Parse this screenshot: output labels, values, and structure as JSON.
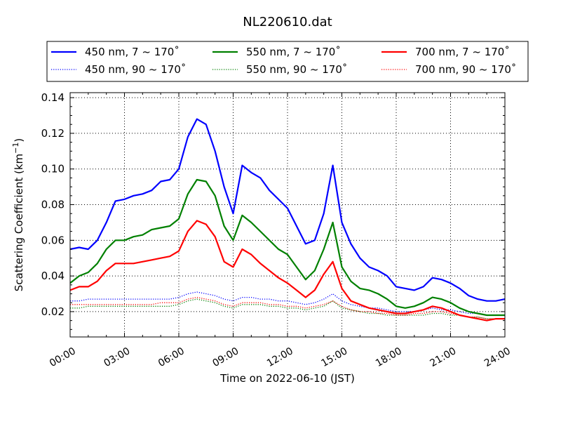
{
  "chart_data": {
    "type": "line",
    "title": "NL220610.dat",
    "xlabel": "Time on 2022-06-10 (JST)",
    "ylabel": "Scattering Coefficient (km",
    "ylabel_sup": "−1",
    "ylabel_end": ")",
    "xlim": [
      0,
      24
    ],
    "ylim": [
      0.0058,
      0.1428
    ],
    "x_ticks": [
      0,
      3,
      6,
      9,
      12,
      15,
      18,
      21,
      24
    ],
    "x_tick_labels": [
      "00:00",
      "03:00",
      "06:00",
      "09:00",
      "12:00",
      "15:00",
      "18:00",
      "21:00",
      "24:00"
    ],
    "y_ticks": [
      0.02,
      0.04,
      0.06,
      0.08,
      0.1,
      0.12,
      0.14
    ],
    "y_tick_labels": [
      "0.02",
      "0.04",
      "0.06",
      "0.08",
      "0.10",
      "0.12",
      "0.14"
    ],
    "grid": true,
    "legend_placement": "top, outside plot",
    "x_hours_step": 0.5,
    "series": [
      {
        "name": "450 nm, 7 ~ 170˚",
        "color": "#0000ff",
        "style": "solid",
        "values": [
          0.055,
          0.056,
          0.055,
          0.06,
          0.07,
          0.082,
          0.083,
          0.085,
          0.086,
          0.088,
          0.093,
          0.094,
          0.1,
          0.118,
          0.128,
          0.125,
          0.11,
          0.09,
          0.075,
          0.102,
          0.098,
          0.095,
          0.088,
          0.083,
          0.078,
          0.068,
          0.058,
          0.06,
          0.075,
          0.102,
          0.07,
          0.058,
          0.05,
          0.045,
          0.043,
          0.04,
          0.034,
          0.033,
          0.032,
          0.034,
          0.039,
          0.038,
          0.036,
          0.033,
          0.029,
          0.027,
          0.026,
          0.026,
          0.027
        ]
      },
      {
        "name": "550 nm, 7 ~ 170˚",
        "color": "#008000",
        "style": "solid",
        "values": [
          0.036,
          0.04,
          0.042,
          0.047,
          0.055,
          0.06,
          0.06,
          0.062,
          0.063,
          0.066,
          0.067,
          0.068,
          0.072,
          0.086,
          0.094,
          0.093,
          0.085,
          0.068,
          0.06,
          0.074,
          0.07,
          0.065,
          0.06,
          0.055,
          0.052,
          0.045,
          0.038,
          0.043,
          0.055,
          0.07,
          0.045,
          0.037,
          0.033,
          0.032,
          0.03,
          0.027,
          0.023,
          0.022,
          0.023,
          0.025,
          0.028,
          0.027,
          0.025,
          0.022,
          0.02,
          0.019,
          0.018,
          0.018,
          0.018
        ]
      },
      {
        "name": "700 nm, 7 ~ 170˚",
        "color": "#ff0000",
        "style": "solid",
        "values": [
          0.032,
          0.034,
          0.034,
          0.037,
          0.043,
          0.047,
          0.047,
          0.047,
          0.048,
          0.049,
          0.05,
          0.051,
          0.054,
          0.065,
          0.071,
          0.069,
          0.062,
          0.048,
          0.045,
          0.055,
          0.052,
          0.047,
          0.043,
          0.039,
          0.036,
          0.032,
          0.028,
          0.032,
          0.041,
          0.048,
          0.033,
          0.026,
          0.024,
          0.022,
          0.021,
          0.02,
          0.019,
          0.019,
          0.02,
          0.021,
          0.023,
          0.022,
          0.02,
          0.018,
          0.017,
          0.016,
          0.015,
          0.016,
          0.016
        ]
      },
      {
        "name": "450 nm, 90 ~ 170˚",
        "color": "#0000ff",
        "style": "dotted",
        "values": [
          0.026,
          0.026,
          0.027,
          0.027,
          0.027,
          0.027,
          0.027,
          0.027,
          0.027,
          0.027,
          0.027,
          0.027,
          0.028,
          0.03,
          0.031,
          0.03,
          0.029,
          0.027,
          0.026,
          0.028,
          0.028,
          0.027,
          0.027,
          0.026,
          0.026,
          0.025,
          0.024,
          0.025,
          0.027,
          0.03,
          0.026,
          0.024,
          0.023,
          0.022,
          0.022,
          0.021,
          0.02,
          0.02,
          0.02,
          0.021,
          0.022,
          0.021,
          0.021,
          0.02,
          0.019,
          0.019,
          0.018,
          0.018,
          0.018
        ]
      },
      {
        "name": "550 nm, 90 ~ 170˚",
        "color": "#008000",
        "style": "dotted",
        "values": [
          0.022,
          0.022,
          0.023,
          0.023,
          0.023,
          0.023,
          0.023,
          0.023,
          0.023,
          0.023,
          0.023,
          0.023,
          0.024,
          0.026,
          0.027,
          0.026,
          0.025,
          0.023,
          0.022,
          0.024,
          0.024,
          0.024,
          0.023,
          0.023,
          0.022,
          0.022,
          0.021,
          0.022,
          0.023,
          0.026,
          0.022,
          0.021,
          0.02,
          0.019,
          0.019,
          0.018,
          0.018,
          0.018,
          0.018,
          0.018,
          0.019,
          0.019,
          0.018,
          0.018,
          0.017,
          0.017,
          0.016,
          0.016,
          0.016
        ]
      },
      {
        "name": "700 nm, 90 ~ 170˚",
        "color": "#ff0000",
        "style": "dotted",
        "values": [
          0.024,
          0.024,
          0.024,
          0.024,
          0.024,
          0.024,
          0.024,
          0.024,
          0.024,
          0.024,
          0.025,
          0.025,
          0.025,
          0.027,
          0.028,
          0.027,
          0.026,
          0.024,
          0.023,
          0.025,
          0.025,
          0.025,
          0.024,
          0.024,
          0.023,
          0.023,
          0.022,
          0.023,
          0.024,
          0.026,
          0.023,
          0.021,
          0.02,
          0.02,
          0.019,
          0.019,
          0.018,
          0.018,
          0.019,
          0.019,
          0.02,
          0.02,
          0.019,
          0.018,
          0.017,
          0.017,
          0.016,
          0.016,
          0.016
        ]
      }
    ]
  }
}
